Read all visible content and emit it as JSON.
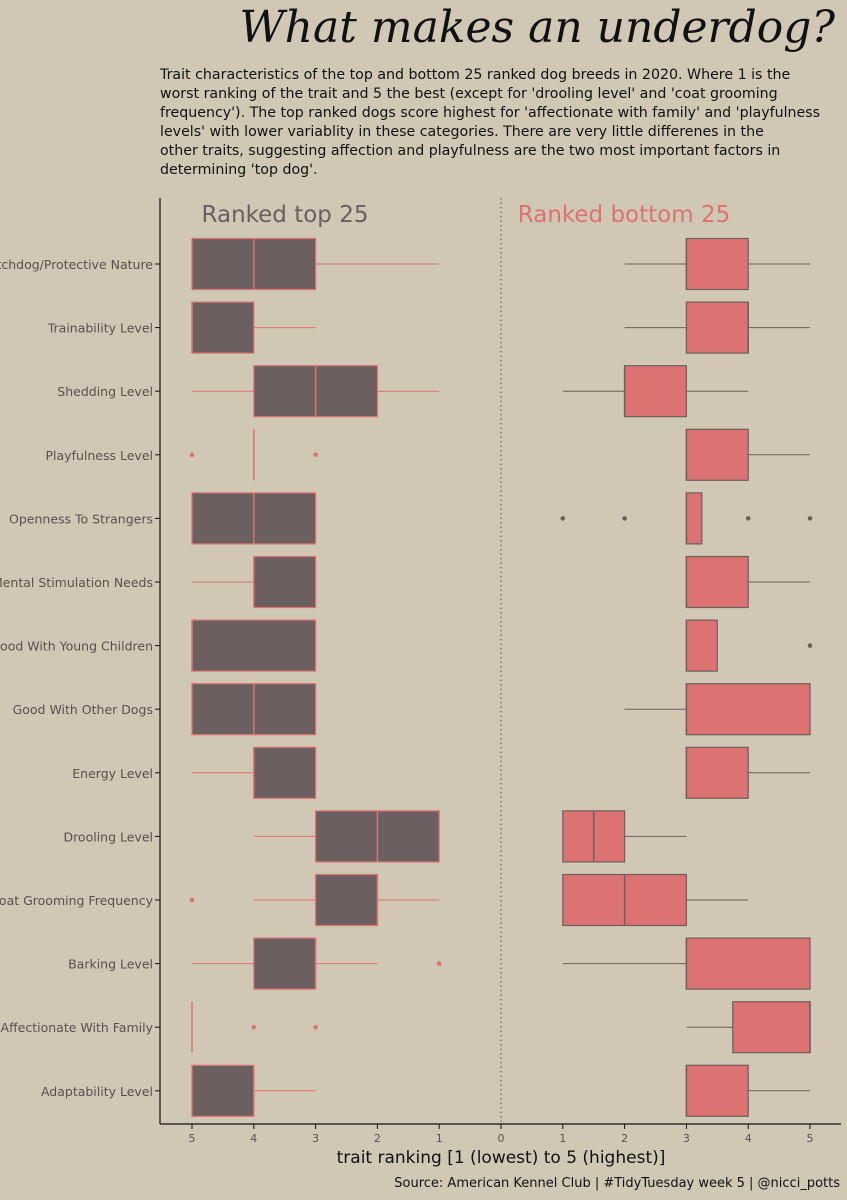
{
  "chart_data": {
    "type": "boxplot",
    "title": "What makes an underdog?",
    "subtitle": "Trait characteristics of the top and bottom 25 ranked dog breeds in 2020. Where 1 is the worst ranking of the trait and 5 the best (except for 'drooling level' and 'coat grooming frequency'). The top ranked dogs score highest for 'affectionate with family' and 'playfulness levels' with lower variablity in these categories. There are very little differenes in the other traits, suggesting affection and playfulness are the two most important factors in determining 'top dog'.",
    "subtitle_lines": [
      "Trait characteristics of the top and bottom 25 ranked dog breeds in 2020. Where 1 is the",
      "worst ranking of the trait and 5 the best (except for 'drooling level' and 'coat grooming",
      "frequency'). The top ranked dogs score highest for 'affectionate with family' and 'playfulness",
      "levels' with lower variablity in these categories. There are very little differenes in the",
      "other traits, suggesting affection and playfulness are the two most important factors in",
      "determining 'top dog'."
    ],
    "xlabel": "trait ranking [1 (lowest) to 5 (highest)]",
    "caption": "Source: American Kennel Club  |  #TidyTuesday week 5  |  @nicci_potts",
    "x_tick_labels": [
      "5",
      "4",
      "3",
      "2",
      "1",
      "0",
      "1",
      "2",
      "3",
      "4",
      "5"
    ],
    "xlim": [
      -5.5,
      5.5
    ],
    "panels": [
      {
        "name": "Ranked top 25",
        "fill": "#6b5f5f",
        "line": "#dd7272",
        "direction": "mirrored-left"
      },
      {
        "name": "Ranked bottom 25",
        "fill": "#dd7272",
        "line": "#6b5f5f",
        "direction": "right"
      }
    ],
    "categories": [
      "Watchdog/Protective Nature",
      "Trainability Level",
      "Shedding Level",
      "Playfulness Level",
      "Openness To Strangers",
      "Mental Stimulation Needs",
      "Good With Young Children",
      "Good With Other Dogs",
      "Energy Level",
      "Drooling Level",
      "Coat Grooming Frequency",
      "Barking Level",
      "Affectionate With Family",
      "Adaptability Level"
    ],
    "series": [
      {
        "name": "Ranked top 25",
        "boxes": [
          {
            "min": 1,
            "q1": 3,
            "median": 4,
            "q3": 5,
            "max": 5,
            "outliers": []
          },
          {
            "min": 3,
            "q1": 4,
            "median": 5,
            "q3": 5,
            "max": 5,
            "outliers": []
          },
          {
            "min": 1,
            "q1": 2,
            "median": 3,
            "q3": 4,
            "max": 5,
            "outliers": []
          },
          {
            "min": 4,
            "q1": 4,
            "median": 4,
            "q3": 4,
            "max": 4,
            "outliers": [
              3,
              5
            ]
          },
          {
            "min": 3,
            "q1": 3,
            "median": 4,
            "q3": 5,
            "max": 5,
            "outliers": []
          },
          {
            "min": 3,
            "q1": 3,
            "median": 4,
            "q3": 4,
            "max": 5,
            "outliers": []
          },
          {
            "min": 3,
            "q1": 3,
            "median": 5,
            "q3": 5,
            "max": 5,
            "outliers": []
          },
          {
            "min": 3,
            "q1": 3,
            "median": 4,
            "q3": 5,
            "max": 5,
            "outliers": []
          },
          {
            "min": 3,
            "q1": 3,
            "median": 4,
            "q3": 4,
            "max": 5,
            "outliers": []
          },
          {
            "min": 1,
            "q1": 1,
            "median": 2,
            "q3": 3,
            "max": 4,
            "outliers": []
          },
          {
            "min": 1,
            "q1": 2,
            "median": 2,
            "q3": 3,
            "max": 4,
            "outliers": [
              5
            ]
          },
          {
            "min": 2,
            "q1": 3,
            "median": 3,
            "q3": 4,
            "max": 5,
            "outliers": [
              1
            ]
          },
          {
            "min": 5,
            "q1": 5,
            "median": 5,
            "q3": 5,
            "max": 5,
            "outliers": [
              3,
              4
            ]
          },
          {
            "min": 3,
            "q1": 4,
            "median": 4,
            "q3": 5,
            "max": 5,
            "outliers": []
          }
        ]
      },
      {
        "name": "Ranked bottom 25",
        "boxes": [
          {
            "min": 2,
            "q1": 3,
            "median": 3,
            "q3": 4,
            "max": 5,
            "outliers": []
          },
          {
            "min": 2,
            "q1": 3,
            "median": 4,
            "q3": 4,
            "max": 5,
            "outliers": []
          },
          {
            "min": 1,
            "q1": 2,
            "median": 2,
            "q3": 3,
            "max": 4,
            "outliers": []
          },
          {
            "min": 3,
            "q1": 3,
            "median": 3,
            "q3": 4,
            "max": 5,
            "outliers": []
          },
          {
            "min": 3,
            "q1": 3,
            "median": 3,
            "q3": 3.25,
            "max": 3.25,
            "outliers": [
              1,
              2,
              4,
              5
            ]
          },
          {
            "min": 3,
            "q1": 3,
            "median": 3,
            "q3": 4,
            "max": 5,
            "outliers": []
          },
          {
            "min": 3,
            "q1": 3,
            "median": 3,
            "q3": 3.5,
            "max": 3.5,
            "outliers": [
              5
            ]
          },
          {
            "min": 2,
            "q1": 3,
            "median": 3,
            "q3": 5,
            "max": 5,
            "outliers": []
          },
          {
            "min": 3,
            "q1": 3,
            "median": 3,
            "q3": 4,
            "max": 5,
            "outliers": []
          },
          {
            "min": 1,
            "q1": 1,
            "median": 1.5,
            "q3": 2,
            "max": 3,
            "outliers": []
          },
          {
            "min": 1,
            "q1": 1,
            "median": 2,
            "q3": 3,
            "max": 4,
            "outliers": []
          },
          {
            "min": 1,
            "q1": 3,
            "median": 3,
            "q3": 5,
            "max": 5,
            "outliers": []
          },
          {
            "min": 3,
            "q1": 3.75,
            "median": 5,
            "q3": 5,
            "max": 5,
            "outliers": []
          },
          {
            "min": 3,
            "q1": 3,
            "median": 3,
            "q3": 4,
            "max": 5,
            "outliers": []
          }
        ]
      }
    ]
  }
}
